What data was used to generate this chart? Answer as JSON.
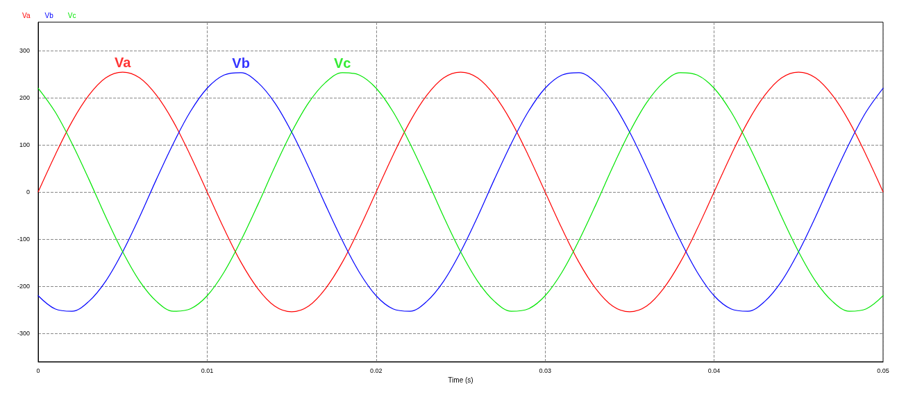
{
  "chart_data": {
    "type": "line",
    "xlabel": "Time (s)",
    "x": [
      0,
      0.001,
      0.002,
      0.003,
      0.004,
      0.005,
      0.006,
      0.007,
      0.008,
      0.009,
      0.01,
      0.011,
      0.012,
      0.013,
      0.014,
      0.015,
      0.016,
      0.017,
      0.018,
      0.019,
      0.02,
      0.021,
      0.022,
      0.023,
      0.024,
      0.025,
      0.026,
      0.027,
      0.028,
      0.029,
      0.03,
      0.031,
      0.032,
      0.033,
      0.034,
      0.035,
      0.036,
      0.037,
      0.038,
      0.039,
      0.04,
      0.041,
      0.042,
      0.043,
      0.044,
      0.045,
      0.046,
      0.047,
      0.048,
      0.049,
      0.05
    ],
    "series": [
      {
        "name": "Va",
        "color": "#ff0000",
        "values": [
          0,
          78,
          149,
          205,
          242,
          254,
          242,
          205,
          149,
          78,
          0,
          -78,
          -149,
          -205,
          -242,
          -254,
          -242,
          -205,
          -149,
          -78,
          0,
          78,
          149,
          205,
          242,
          254,
          242,
          205,
          149,
          78,
          0,
          -78,
          -149,
          -205,
          -242,
          -254,
          -242,
          -205,
          -149,
          -78,
          0,
          78,
          149,
          205,
          242,
          254,
          242,
          205,
          149,
          78,
          0
        ]
      },
      {
        "name": "Vb",
        "color": "#0000ff",
        "values": [
          -220,
          -248,
          -253,
          -232,
          -189,
          -127,
          -53,
          27,
          103,
          170,
          220,
          248,
          253,
          232,
          189,
          127,
          53,
          -27,
          -103,
          -170,
          -220,
          -248,
          -253,
          -232,
          -189,
          -127,
          -53,
          27,
          103,
          170,
          220,
          248,
          253,
          232,
          189,
          127,
          53,
          -27,
          -103,
          -170,
          -220,
          -248,
          -253,
          -232,
          -189,
          -127,
          -53,
          27,
          103,
          170,
          220
        ]
      },
      {
        "name": "Vc",
        "color": "#00e600",
        "values": [
          220,
          170,
          103,
          27,
          -53,
          -127,
          -189,
          -232,
          -253,
          -248,
          -220,
          -170,
          -103,
          -27,
          53,
          127,
          189,
          232,
          253,
          248,
          220,
          170,
          103,
          27,
          -53,
          -127,
          -189,
          -232,
          -253,
          -248,
          -220,
          -170,
          -103,
          -27,
          53,
          127,
          189,
          232,
          253,
          248,
          220,
          170,
          103,
          27,
          -53,
          -127,
          -189,
          -232,
          -253,
          -248,
          -220
        ]
      }
    ],
    "annotations": [
      "Va",
      "Vb",
      "Vc"
    ],
    "xlim": [
      0,
      0.05
    ],
    "xticks": [
      0,
      0.01,
      0.02,
      0.03,
      0.04,
      0.05
    ],
    "ylim": [
      -360,
      360
    ],
    "yticks": [
      -300,
      -200,
      -100,
      0,
      100,
      200,
      300
    ],
    "grid": true,
    "legend": "top left",
    "line_style": "solid",
    "marker": "none"
  }
}
